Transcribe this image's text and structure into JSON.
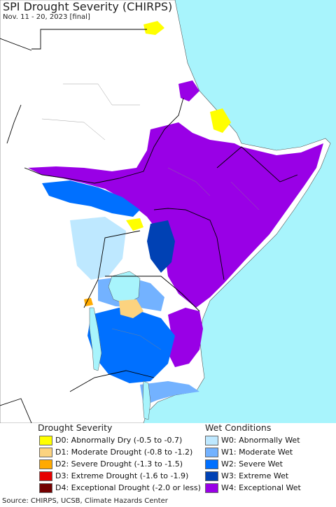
{
  "title": "SPI Drought Severity (CHIRPS)",
  "subtitle": "Nov. 11 - 20, 2023 [final]",
  "legend": {
    "drought_heading": "Drought Severity",
    "wet_heading": "Wet Conditions",
    "drought_items": [
      {
        "label": "D0: Abnormally Dry (-0.5 to -0.7)",
        "color": "#ffff00"
      },
      {
        "label": "D1: Moderate Drought (-0.8 to -1.2)",
        "color": "#fcd37f"
      },
      {
        "label": "D2: Severe Drought (-1.3 to -1.5)",
        "color": "#ffaa00"
      },
      {
        "label": "D3: Extreme Drought (-1.6 to -1.9)",
        "color": "#e60000"
      },
      {
        "label": "D4: Exceptional Drought (-2.0 or less)",
        "color": "#730000"
      }
    ],
    "wet_items": [
      {
        "label": "W0: Abnormally Wet",
        "color": "#bee8ff"
      },
      {
        "label": "W1: Moderate Wet",
        "color": "#73b2ff"
      },
      {
        "label": "W2: Severe Wet",
        "color": "#0070ff"
      },
      {
        "label": "W3: Extreme Wet",
        "color": "#0041b4"
      },
      {
        "label": "W4: Exceptional Wet",
        "color": "#9900e6"
      }
    ]
  },
  "source": "Source: CHIRPS, UCSB, Climate Hazards Center",
  "colors": {
    "water": "#a8f4fc",
    "land": "#ffffff",
    "borders": "#000000"
  }
}
